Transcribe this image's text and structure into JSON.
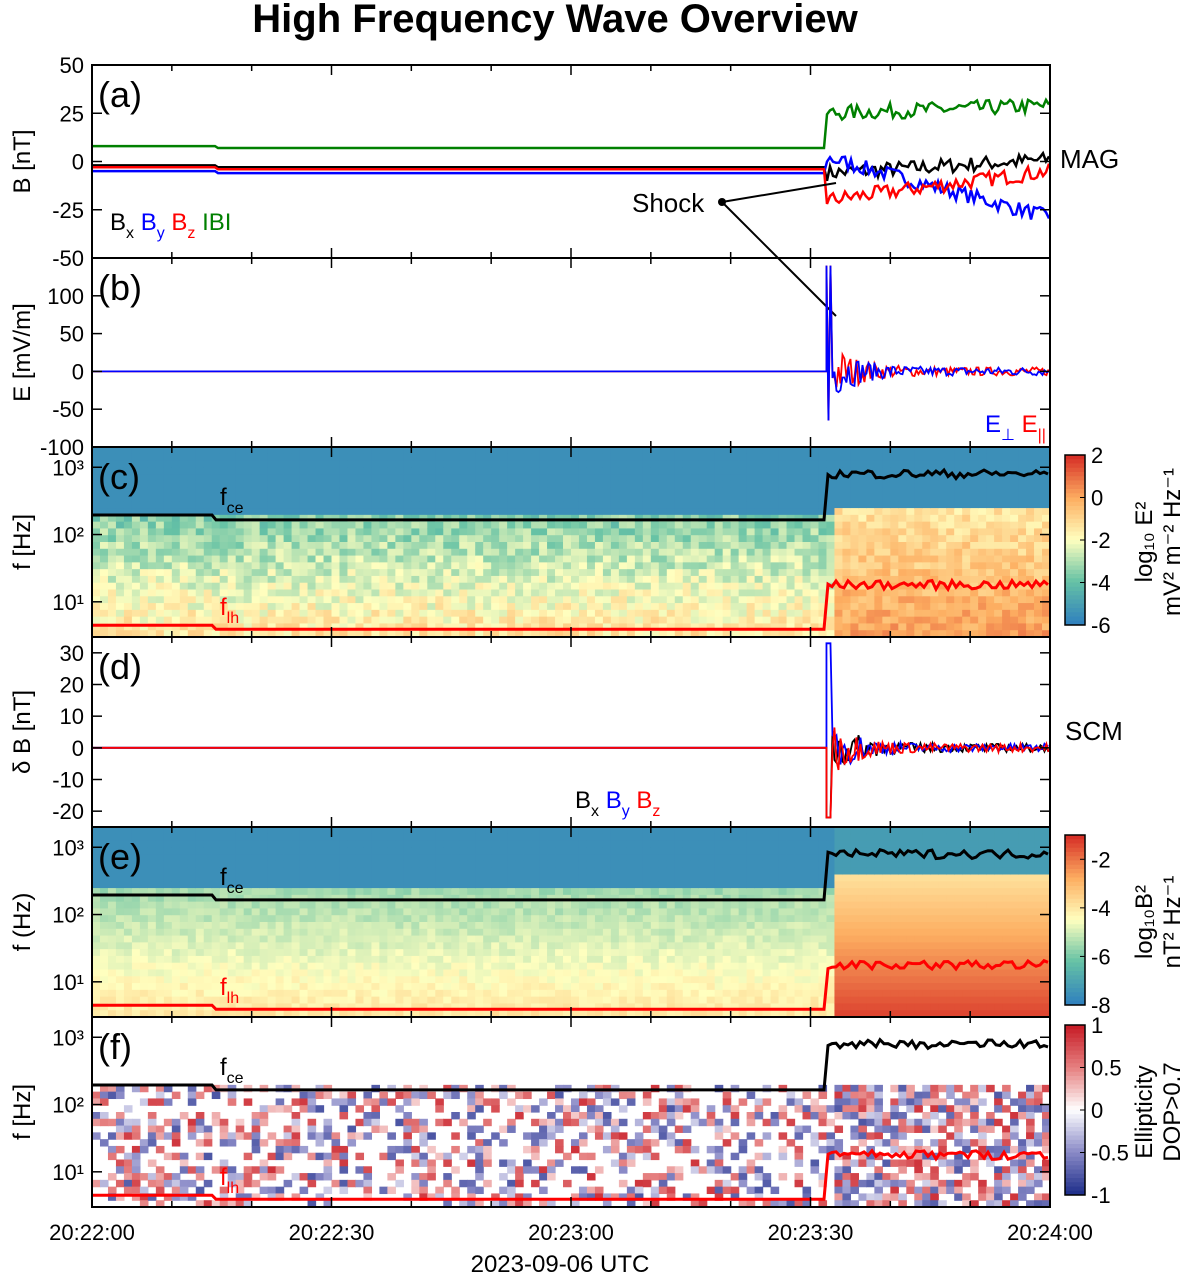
{
  "chart_data": {
    "title": "High Frequency Wave Overview",
    "xlabel": "2023-09-06 UTC",
    "x_ticks": [
      "20:22:00",
      "20:22:30",
      "20:23:00",
      "20:23:30",
      "20:24:00"
    ],
    "x_range": [
      "20:22:00",
      "20:24:00"
    ],
    "shock_time": "20:23:32",
    "panels": [
      {
        "label": "(a)",
        "type": "line",
        "ylabel": "B [nT]",
        "ylim": [
          -50,
          50
        ],
        "yticks": [
          "50",
          "25",
          "0",
          "-25",
          "-50"
        ],
        "instrument": "MAG",
        "annotation": "Shock",
        "legend": [
          {
            "name": "B",
            "sub": "x",
            "color": "#000000"
          },
          {
            "name": "B",
            "sub": "y",
            "color": "#0000ff"
          },
          {
            "name": "B",
            "sub": "z",
            "color": "#ff0000"
          },
          {
            "name": "IBI",
            "sub": "",
            "color": "#008000"
          }
        ],
        "series": [
          {
            "name": "Bx",
            "color": "#000000",
            "pre": -3,
            "post_start": -6,
            "post_end": 1
          },
          {
            "name": "By",
            "color": "#0000ff",
            "pre": -6,
            "post_start": 2,
            "post_end": -29
          },
          {
            "name": "Bz",
            "color": "#ff0000",
            "pre": -4,
            "post_start": -20,
            "post_end": -5
          },
          {
            "name": "|B|",
            "color": "#008000",
            "pre": 7,
            "post_start": 25,
            "post_end": 29
          }
        ]
      },
      {
        "label": "(b)",
        "type": "line",
        "ylabel": "E [mV/m]",
        "ylim": [
          -100,
          150
        ],
        "yticks": [
          "100",
          "50",
          "0",
          "-50",
          "-100"
        ],
        "legend": [
          {
            "name": "E",
            "sub": "⊥",
            "color": "#0000ff"
          },
          {
            "name": "E",
            "sub": "||",
            "color": "#ff0000"
          }
        ],
        "peak": 140,
        "trough": -65
      },
      {
        "label": "(c)",
        "type": "heatmap",
        "ylabel": "f [Hz]",
        "ylog": true,
        "ylim": [
          3,
          2000
        ],
        "yticks": [
          "10³",
          "10²",
          "10¹"
        ],
        "colorbar": {
          "label_top": "log₁₀ E²",
          "label_bottom": "mV² m⁻² Hz⁻¹",
          "ticks": [
            "2",
            "0",
            "-2",
            "-4",
            "-6"
          ],
          "range": [
            -6,
            2
          ]
        },
        "lines": [
          {
            "name": "f_ce",
            "label": "f",
            "sub": "ce",
            "color": "#000000",
            "pre": 195,
            "mid": 165,
            "post": 800
          },
          {
            "name": "f_lh",
            "label": "f",
            "sub": "lh",
            "color": "#ff0000",
            "pre": 4.5,
            "mid": 3.9,
            "post": 18
          }
        ]
      },
      {
        "label": "(d)",
        "type": "line",
        "ylabel": "δ B [nT]",
        "ylim": [
          -25,
          35
        ],
        "yticks": [
          "30",
          "20",
          "10",
          "0",
          "-10",
          "-20"
        ],
        "instrument": "SCM",
        "legend": [
          {
            "name": "B",
            "sub": "x",
            "color": "#000000"
          },
          {
            "name": "B",
            "sub": "y",
            "color": "#0000ff"
          },
          {
            "name": "B",
            "sub": "z",
            "color": "#ff0000"
          }
        ],
        "peak": 33,
        "trough": -22
      },
      {
        "label": "(e)",
        "type": "heatmap",
        "ylabel": "f (Hz)",
        "ylog": true,
        "ylim": [
          3,
          2000
        ],
        "yticks": [
          "10³",
          "10²",
          "10¹"
        ],
        "colorbar": {
          "label_top": "log₁₀B²",
          "label_bottom": "nT² Hz⁻¹",
          "ticks": [
            "-2",
            "-4",
            "-6",
            "-8"
          ],
          "range": [
            -8,
            -1
          ]
        }
      },
      {
        "label": "(f)",
        "type": "heatmap",
        "ylabel": "f [Hz]",
        "ylog": true,
        "ylim": [
          3,
          2000
        ],
        "yticks": [
          "10³",
          "10²",
          "10¹"
        ],
        "colorbar": {
          "label_top": "Ellipticity",
          "label_bottom": "DOP>0.7",
          "ticks": [
            "1",
            "0.5",
            "0",
            "-0.5",
            "-1"
          ],
          "range": [
            -1,
            1
          ]
        }
      }
    ]
  }
}
